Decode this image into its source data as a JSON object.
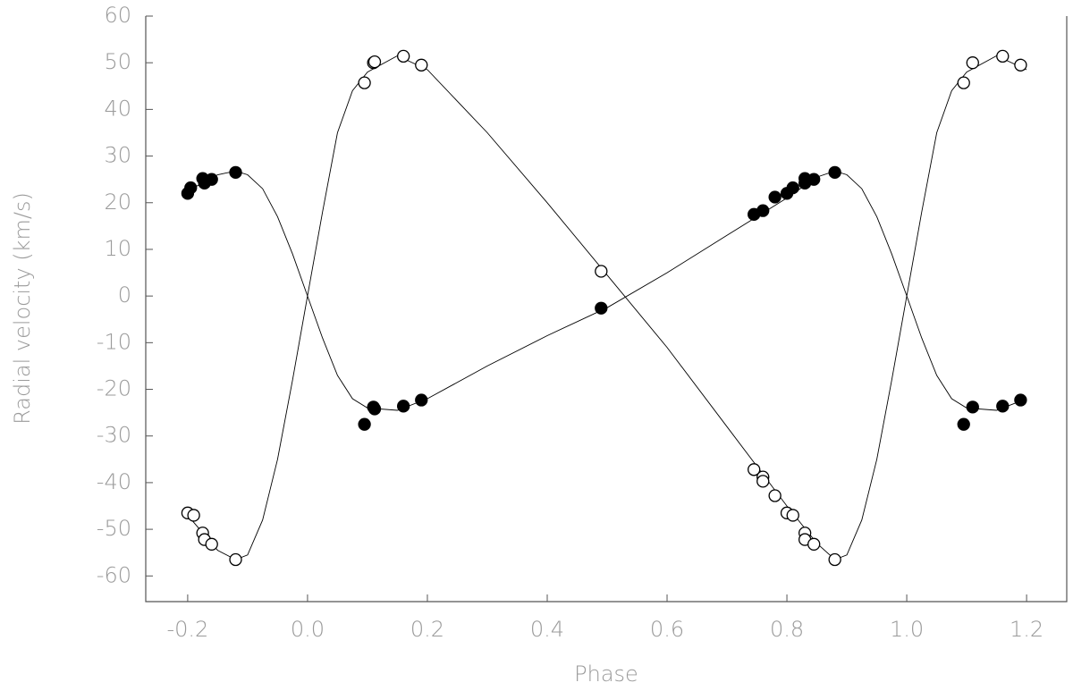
{
  "chart_data": {
    "type": "scatter",
    "xlabel": "Phase",
    "ylabel": "Radial velocity (km/s)",
    "xlim": [
      -0.27,
      1.267
    ],
    "ylim": [
      -65.5,
      60
    ],
    "xticks": [
      -0.2,
      {
        "value": 0,
        "label": "0.0"
      },
      0.2,
      0.4,
      0.6,
      0.8,
      {
        "value": 1,
        "label": "1.0"
      },
      1.2
    ],
    "yticks": [
      -60,
      -50,
      -40,
      -30,
      -20,
      -10,
      0,
      10,
      20,
      30,
      40,
      50,
      60
    ],
    "series": [
      {
        "style": "line",
        "color": "#000000",
        "x": [
          -0.2,
          -0.15,
          -0.12,
          -0.1,
          -0.075,
          -0.05,
          -0.025,
          0,
          0.025,
          0.05,
          0.075,
          0.1,
          0.15,
          0.2,
          0.3,
          0.4,
          0.5,
          0.6,
          0.7,
          0.8,
          0.85,
          0.88,
          0.9,
          0.925,
          0.95,
          0.975,
          1.0,
          1.025,
          1.05,
          1.075,
          1.1,
          1.15,
          1.2
        ],
        "values": [
          22.5,
          26,
          26.8,
          26,
          23,
          17,
          9,
          0,
          -9,
          -17,
          -22,
          -24,
          -24.5,
          -22,
          -15,
          -8.5,
          -2.5,
          5,
          13,
          21,
          25.5,
          26.8,
          26,
          23,
          17,
          9,
          0,
          -9,
          -17,
          -22,
          -24,
          -24.5,
          -22
        ]
      },
      {
        "style": "line",
        "color": "#000000",
        "x": [
          -0.2,
          -0.15,
          -0.12,
          -0.1,
          -0.075,
          -0.05,
          -0.025,
          0,
          0.025,
          0.05,
          0.075,
          0.1,
          0.15,
          0.2,
          0.3,
          0.4,
          0.5,
          0.6,
          0.7,
          0.8,
          0.85,
          0.88,
          0.9,
          0.925,
          0.95,
          0.975,
          1.0,
          1.025,
          1.05,
          1.075,
          1.1,
          1.15,
          1.2
        ],
        "values": [
          -47,
          -54.5,
          -56.5,
          -55.5,
          -48,
          -35,
          -18,
          0,
          18,
          35,
          44,
          48,
          51.5,
          48.5,
          35,
          20,
          4.5,
          -11,
          -28,
          -45,
          -53,
          -56.5,
          -55.5,
          -48,
          -35,
          -18,
          0,
          18,
          35,
          44,
          48,
          51.5,
          48.5
        ]
      },
      {
        "style": "filled",
        "color": "#000000",
        "x": [
          -0.2,
          -0.195,
          -0.175,
          -0.172,
          -0.16,
          -0.12,
          0.095,
          0.11,
          0.112,
          0.16,
          0.19,
          0.49,
          0.745,
          0.76,
          0.78,
          0.8,
          0.81,
          0.83,
          0.83,
          0.845,
          0.88,
          1.095,
          1.11,
          1.16,
          1.19
        ],
        "values": [
          22,
          23.2,
          25.2,
          24.2,
          25,
          26.5,
          -27.5,
          -23.8,
          -24.2,
          -23.6,
          -22.3,
          -2.6,
          17.5,
          18.3,
          21.2,
          22,
          23.2,
          25.2,
          24.2,
          25,
          26.5,
          -27.5,
          -23.8,
          -23.6,
          -22.3
        ]
      },
      {
        "style": "open",
        "color": "#000000",
        "x": [
          -0.2,
          -0.19,
          -0.175,
          -0.172,
          -0.16,
          -0.12,
          0.095,
          0.11,
          0.112,
          0.16,
          0.19,
          0.49,
          0.745,
          0.76,
          0.76,
          0.78,
          0.8,
          0.81,
          0.83,
          0.83,
          0.845,
          0.88,
          1.095,
          1.11,
          1.16,
          1.19
        ],
        "values": [
          -46.5,
          -47,
          -50.8,
          -52.2,
          -53.2,
          -56.5,
          45.7,
          50,
          50.2,
          51.4,
          49.5,
          5.3,
          -37.2,
          -38.8,
          -39.7,
          -42.8,
          -46.5,
          -47,
          -50.8,
          -52.2,
          -53.2,
          -56.5,
          45.7,
          50,
          51.4,
          49.5
        ]
      }
    ]
  }
}
